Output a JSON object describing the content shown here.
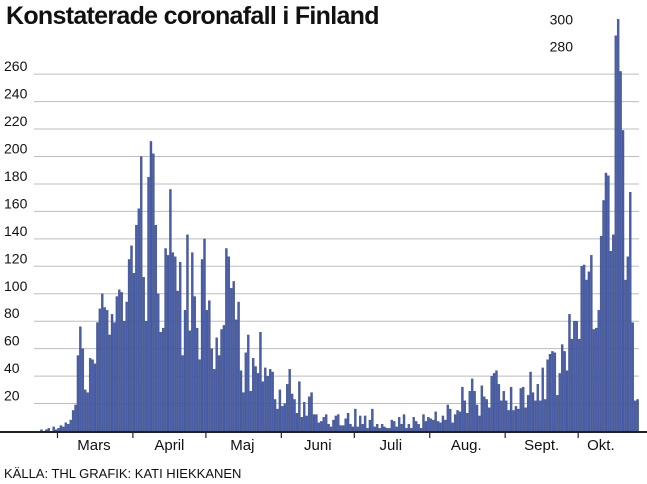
{
  "colors": {
    "bar_fill": "#4a5ea6",
    "bar_stroke": "#33457f",
    "grid": "#bdbdbd",
    "axis": "#222222",
    "text": "#111111",
    "background": "#ffffff"
  },
  "chart_data": {
    "type": "bar",
    "title": "Konstaterade coronafall i Finland",
    "xlabel": "",
    "ylabel": "",
    "ylim": [
      0,
      305
    ],
    "grid": true,
    "legend": "none",
    "y_ticks": [
      20,
      40,
      60,
      80,
      100,
      120,
      140,
      160,
      180,
      200,
      220,
      240,
      260
    ],
    "y_ticks_top": [
      280,
      300
    ],
    "month_labels": [
      "Mars",
      "April",
      "Maj",
      "Juni",
      "Juli",
      "Aug.",
      "Sept.",
      "Okt."
    ],
    "month_starts": [
      "2020-03-01",
      "2020-04-01",
      "2020-05-01",
      "2020-06-01",
      "2020-07-01",
      "2020-08-01",
      "2020-09-01",
      "2020-10-01"
    ],
    "x_start": "2020-02-22",
    "values": [
      0,
      1,
      0,
      1,
      2,
      0,
      3,
      1,
      2,
      4,
      3,
      6,
      5,
      8,
      15,
      19,
      55,
      76,
      60,
      30,
      28,
      53,
      52,
      49,
      79,
      89,
      100,
      90,
      88,
      70,
      85,
      79,
      98,
      103,
      101,
      80,
      94,
      125,
      135,
      115,
      150,
      162,
      200,
      112,
      80,
      185,
      211,
      202,
      150,
      100,
      72,
      75,
      133,
      128,
      176,
      130,
      127,
      102,
      123,
      55,
      88,
      143,
      73,
      130,
      98,
      75,
      52,
      125,
      140,
      88,
      95,
      60,
      45,
      68,
      55,
      74,
      77,
      133,
      127,
      104,
      109,
      81,
      94,
      44,
      28,
      57,
      70,
      29,
      53,
      47,
      42,
      72,
      36,
      46,
      40,
      45,
      43,
      23,
      16,
      30,
      18,
      20,
      34,
      45,
      27,
      23,
      13,
      36,
      10,
      21,
      11,
      25,
      28,
      12,
      12,
      6,
      7,
      10,
      12,
      5,
      3,
      8,
      11,
      12,
      4,
      4,
      9,
      13,
      5,
      3,
      16,
      3,
      11,
      5,
      11,
      2,
      8,
      16,
      3,
      5,
      2,
      5,
      3,
      2,
      2,
      8,
      7,
      3,
      10,
      5,
      12,
      2,
      5,
      2,
      10,
      7,
      5,
      2,
      12,
      7,
      10,
      9,
      8,
      14,
      7,
      6,
      11,
      8,
      19,
      16,
      6,
      12,
      15,
      14,
      32,
      22,
      13,
      29,
      38,
      29,
      19,
      11,
      33,
      25,
      23,
      17,
      40,
      42,
      44,
      34,
      22,
      29,
      22,
      15,
      32,
      15,
      18,
      16,
      31,
      32,
      17,
      26,
      43,
      28,
      22,
      34,
      22,
      46,
      23,
      52,
      56,
      58,
      57,
      26,
      42,
      63,
      58,
      44,
      85,
      67,
      80,
      80,
      67,
      120,
      121,
      110,
      116,
      128,
      74,
      75,
      88,
      142,
      168,
      188,
      186,
      131,
      143,
      288,
      300,
      262,
      219,
      110,
      127,
      174,
      79,
      22,
      23
    ]
  },
  "source": "KÄLLA: THL GRAFIK: KATI HIEKKANEN"
}
